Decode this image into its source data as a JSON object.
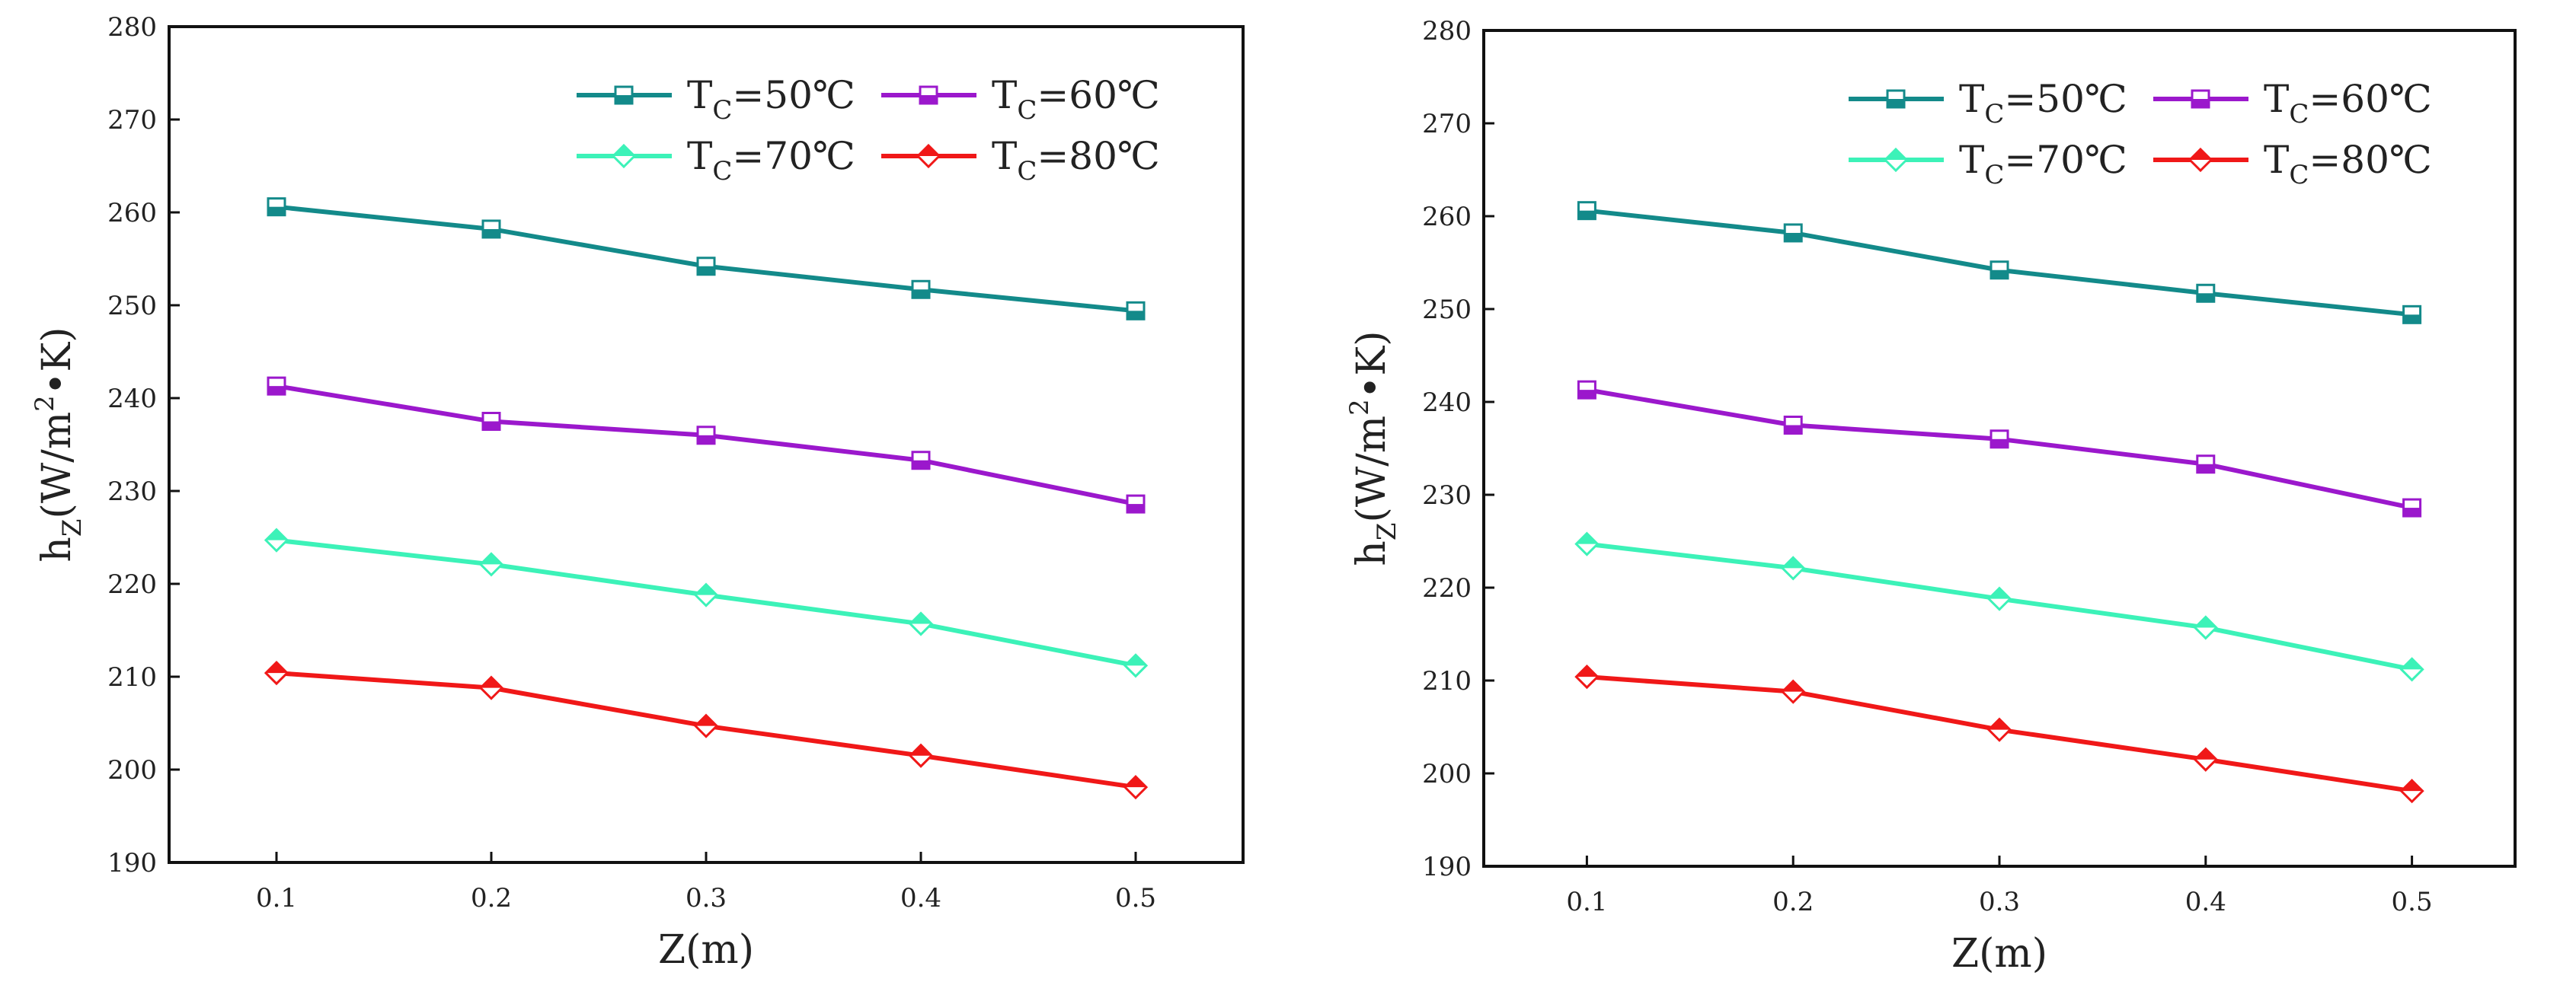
{
  "chart_data": [
    {
      "type": "line",
      "panel": "left",
      "title": "",
      "xlabel": "Z(m)",
      "ylabel_main": "h",
      "ylabel_sub": "Z",
      "ylabel_rest_prefix": "(W/m",
      "ylabel_sup": "2",
      "ylabel_rest_suffix": "•K)",
      "x": [
        0.1,
        0.2,
        0.3,
        0.4,
        0.5
      ],
      "x_tick_labels": [
        "0.1",
        "0.2",
        "0.3",
        "0.4",
        "0.5"
      ],
      "xlim": [
        0.05,
        0.55
      ],
      "ylim": [
        190,
        280
      ],
      "y_ticks": [
        190,
        200,
        210,
        220,
        230,
        240,
        250,
        260,
        270,
        280
      ],
      "y_tick_labels": [
        "190",
        "200",
        "210",
        "220",
        "230",
        "240",
        "250",
        "260",
        "270",
        "280"
      ],
      "grid": false,
      "legend_position": "top-right",
      "series": [
        {
          "name": "T_C=50℃",
          "label_main": "T",
          "label_sub": "C",
          "label_rest": "=50℃",
          "color": "#138a8a",
          "marker": "square",
          "values": [
            260.6,
            258.2,
            254.2,
            251.7,
            249.4
          ]
        },
        {
          "name": "T_C=60℃",
          "label_main": "T",
          "label_sub": "C",
          "label_rest": "=60℃",
          "color": "#9b18cc",
          "marker": "square",
          "values": [
            241.3,
            237.5,
            236.0,
            233.3,
            228.6
          ]
        },
        {
          "name": "T_C=70℃",
          "label_main": "T",
          "label_sub": "C",
          "label_rest": "=70℃",
          "color": "#3cf2b8",
          "marker": "diamond",
          "values": [
            224.7,
            222.1,
            218.8,
            215.7,
            211.2
          ]
        },
        {
          "name": "T_C=80℃",
          "label_main": "T",
          "label_sub": "C",
          "label_rest": "=80℃",
          "color": "#f01818",
          "marker": "diamond",
          "values": [
            210.4,
            208.8,
            204.7,
            201.5,
            198.1
          ]
        }
      ]
    },
    {
      "type": "line",
      "panel": "right",
      "title": "",
      "xlabel": "Z(m)",
      "ylabel_main": "h",
      "ylabel_sub": "Z",
      "ylabel_rest_prefix": "(W/m",
      "ylabel_sup": "2",
      "ylabel_rest_suffix": "•K)",
      "x": [
        0.1,
        0.2,
        0.3,
        0.4,
        0.5
      ],
      "x_tick_labels": [
        "0.1",
        "0.2",
        "0.3",
        "0.4",
        "0.5"
      ],
      "xlim": [
        0.05,
        0.55
      ],
      "ylim": [
        190,
        280
      ],
      "y_ticks": [
        190,
        200,
        210,
        220,
        230,
        240,
        250,
        260,
        270,
        280
      ],
      "y_tick_labels": [
        "190",
        "200",
        "210",
        "220",
        "230",
        "240",
        "250",
        "260",
        "270",
        "280"
      ],
      "grid": false,
      "legend_position": "top-right",
      "series": [
        {
          "name": "T_C=50℃",
          "label_main": "T",
          "label_sub": "C",
          "label_rest": "=50℃",
          "color": "#138a8a",
          "marker": "square",
          "values": [
            260.6,
            258.2,
            254.2,
            251.7,
            249.4
          ]
        },
        {
          "name": "T_C=60℃",
          "label_main": "T",
          "label_sub": "C",
          "label_rest": "=60℃",
          "color": "#9b18cc",
          "marker": "square",
          "values": [
            241.3,
            237.5,
            236.0,
            233.3,
            228.6
          ]
        },
        {
          "name": "T_C=70℃",
          "label_main": "T",
          "label_sub": "C",
          "label_rest": "=70℃",
          "color": "#3cf2b8",
          "marker": "diamond",
          "values": [
            224.7,
            222.1,
            218.8,
            215.7,
            211.2
          ]
        },
        {
          "name": "T_C=80℃",
          "label_main": "T",
          "label_sub": "C",
          "label_rest": "=80℃",
          "color": "#f01818",
          "marker": "diamond",
          "values": [
            210.4,
            208.8,
            204.7,
            201.5,
            198.1
          ]
        }
      ]
    }
  ]
}
